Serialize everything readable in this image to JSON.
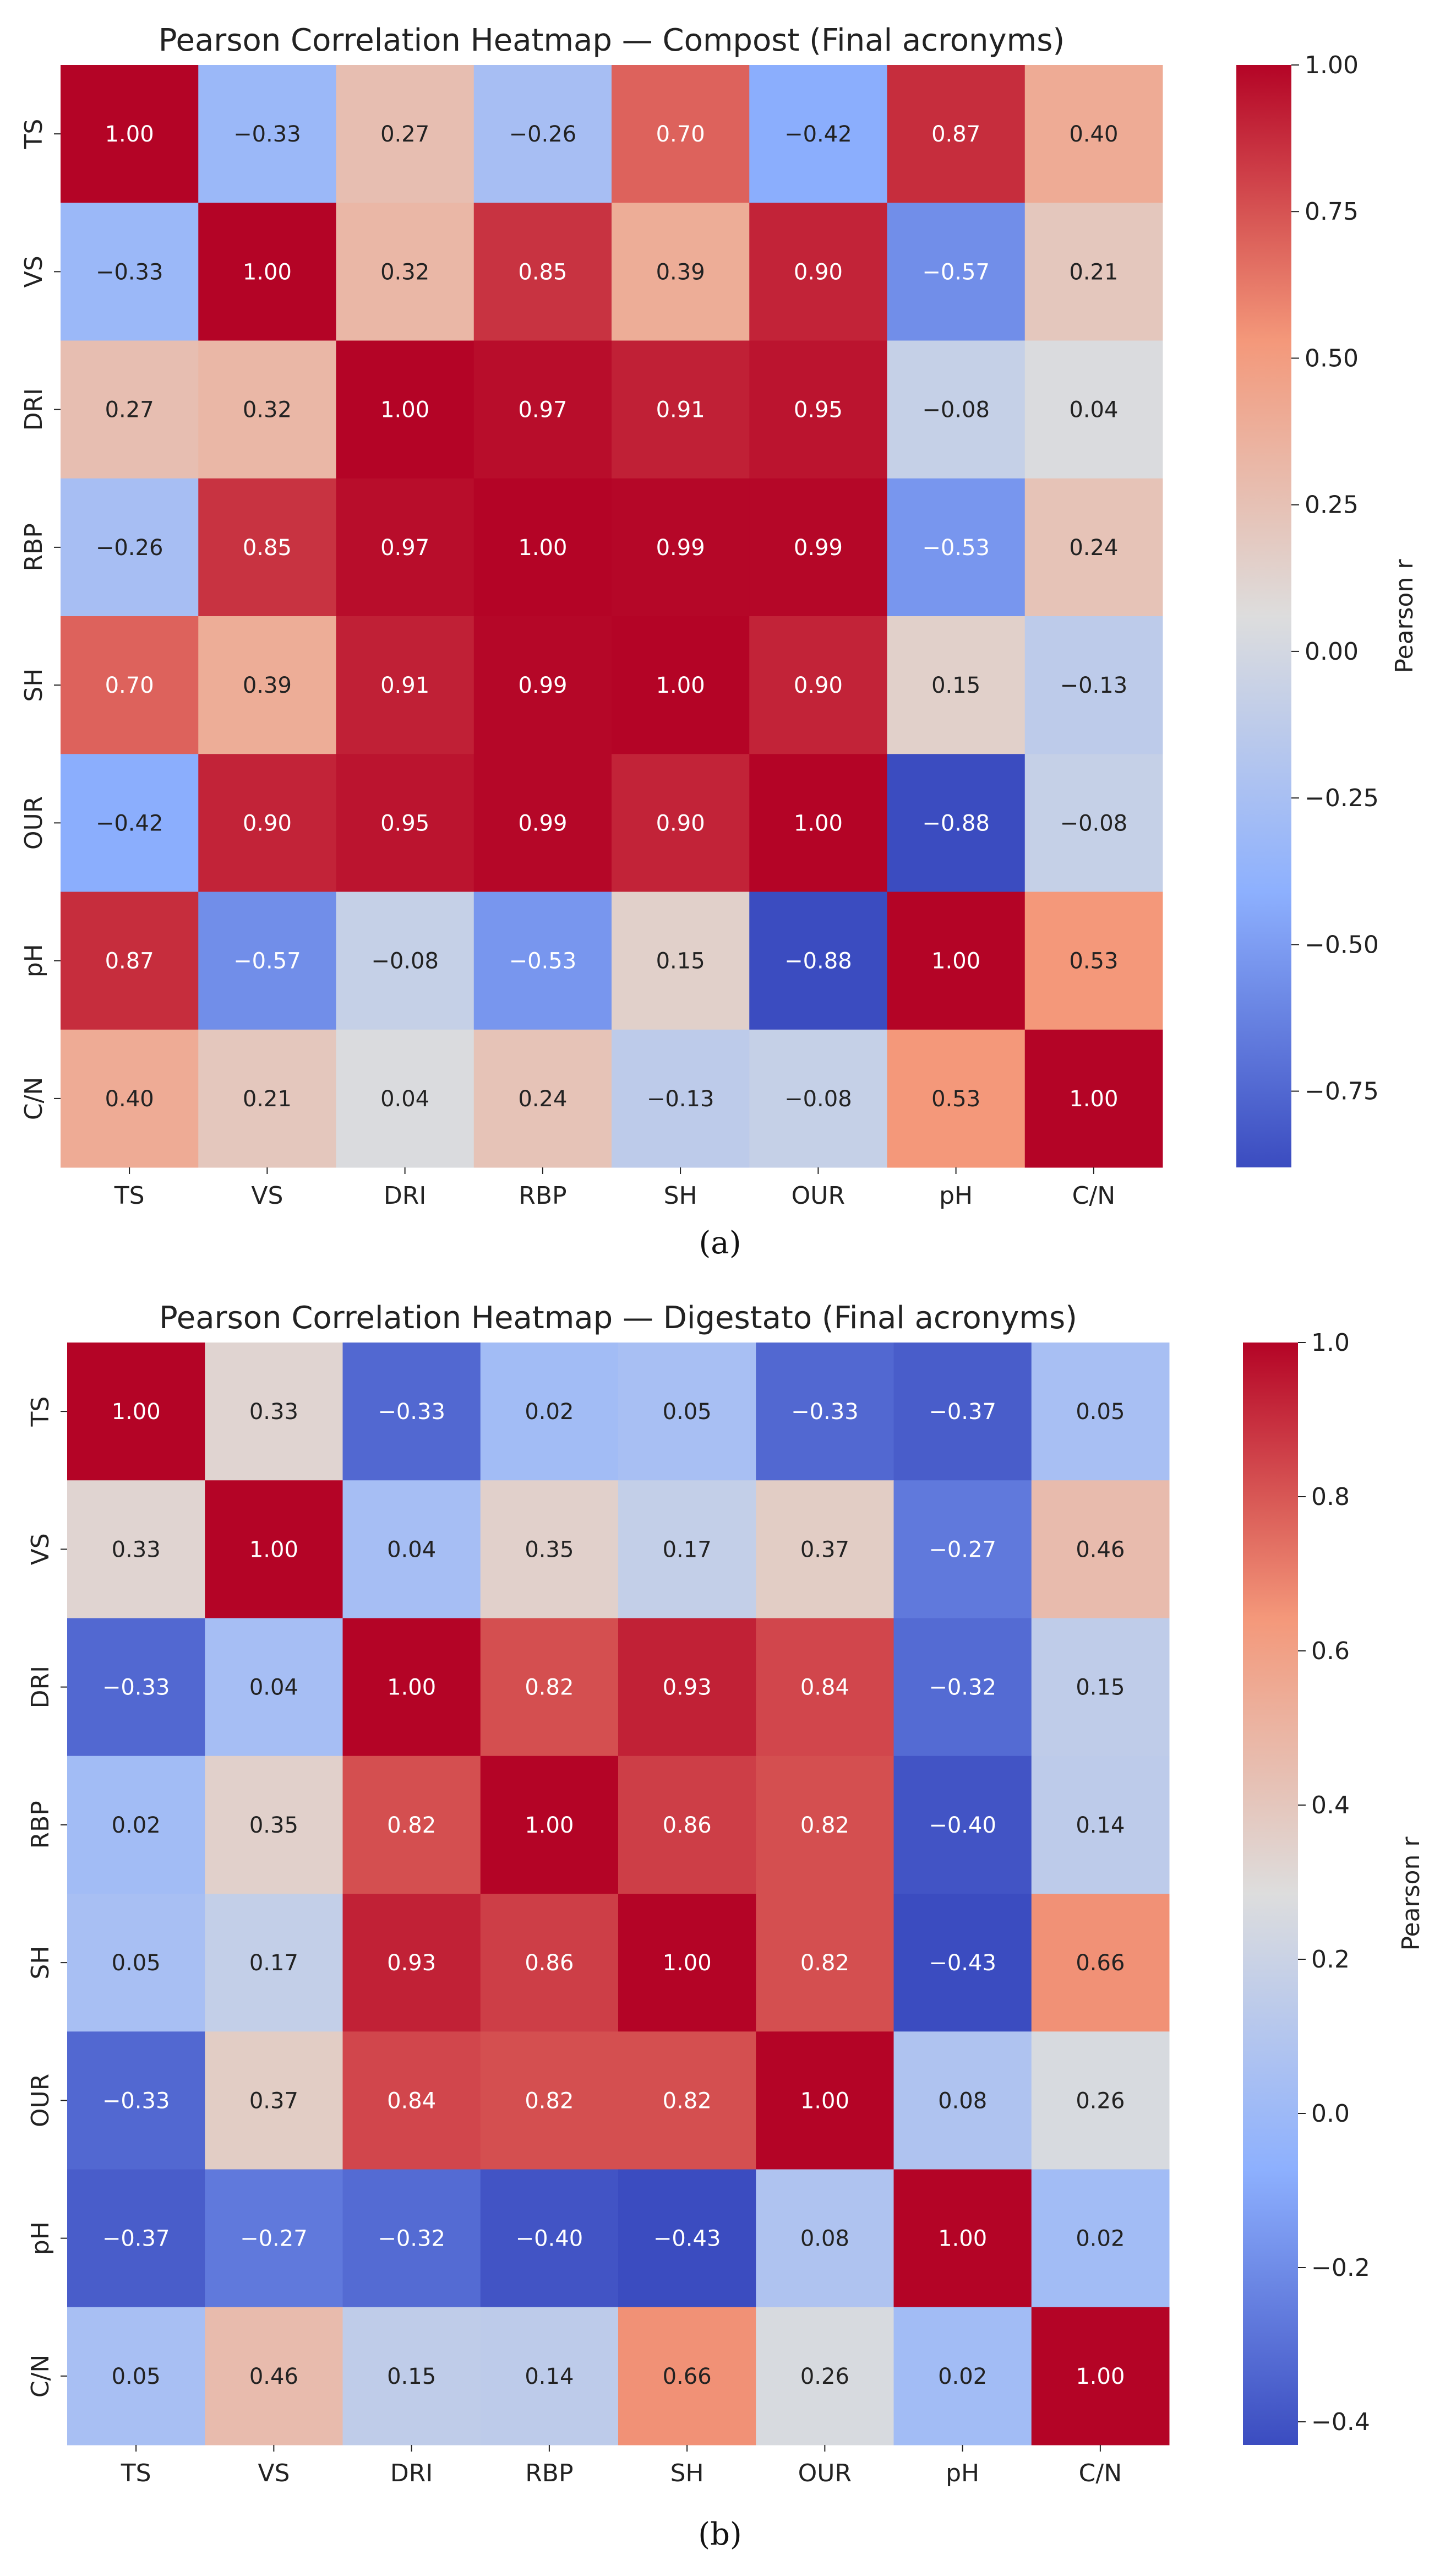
{
  "chart_data": [
    {
      "type": "heatmap",
      "title": "Pearson Correlation Heatmap — Compost (Final acronyms)",
      "caption": "(a)",
      "x_labels": [
        "TS",
        "VS",
        "DRI",
        "RBP",
        "SH",
        "OUR",
        "pH",
        "C/N"
      ],
      "y_labels": [
        "TS",
        "VS",
        "DRI",
        "RBP",
        "SH",
        "OUR",
        "pH",
        "C/N"
      ],
      "values": [
        [
          1.0,
          -0.33,
          0.27,
          -0.26,
          0.7,
          -0.42,
          0.87,
          0.4
        ],
        [
          -0.33,
          1.0,
          0.32,
          0.85,
          0.39,
          0.9,
          -0.57,
          0.21
        ],
        [
          0.27,
          0.32,
          1.0,
          0.97,
          0.91,
          0.95,
          -0.08,
          0.04
        ],
        [
          -0.26,
          0.85,
          0.97,
          1.0,
          0.99,
          0.99,
          -0.53,
          0.24
        ],
        [
          0.7,
          0.39,
          0.91,
          0.99,
          1.0,
          0.9,
          0.15,
          -0.13
        ],
        [
          -0.42,
          0.9,
          0.95,
          0.99,
          0.9,
          1.0,
          -0.88,
          -0.08
        ],
        [
          0.87,
          -0.57,
          -0.08,
          -0.53,
          0.15,
          -0.88,
          1.0,
          0.53
        ],
        [
          0.4,
          0.21,
          0.04,
          0.24,
          -0.13,
          -0.08,
          0.53,
          1.0
        ]
      ],
      "colorbar": {
        "label": "Pearson r",
        "range": [
          -0.88,
          1.0
        ],
        "ticks": [
          1.0,
          0.75,
          0.5,
          0.25,
          0.0,
          -0.25,
          -0.5,
          -0.75
        ],
        "tick_labels": [
          "1.00",
          "0.75",
          "0.50",
          "0.25",
          "0.00",
          "−0.25",
          "−0.50",
          "−0.75"
        ],
        "colormap": "coolwarm"
      }
    },
    {
      "type": "heatmap",
      "title": "Pearson Correlation Heatmap — Digestato (Final acronyms)",
      "caption": "(b)",
      "x_labels": [
        "TS",
        "VS",
        "DRI",
        "RBP",
        "SH",
        "OUR",
        "pH",
        "C/N"
      ],
      "y_labels": [
        "TS",
        "VS",
        "DRI",
        "RBP",
        "SH",
        "OUR",
        "pH",
        "C/N"
      ],
      "values": [
        [
          1.0,
          0.33,
          -0.33,
          0.02,
          0.05,
          -0.33,
          -0.37,
          0.05
        ],
        [
          0.33,
          1.0,
          0.04,
          0.35,
          0.17,
          0.37,
          -0.27,
          0.46
        ],
        [
          -0.33,
          0.04,
          1.0,
          0.82,
          0.93,
          0.84,
          -0.32,
          0.15
        ],
        [
          0.02,
          0.35,
          0.82,
          1.0,
          0.86,
          0.82,
          -0.4,
          0.14
        ],
        [
          0.05,
          0.17,
          0.93,
          0.86,
          1.0,
          0.82,
          -0.43,
          0.66
        ],
        [
          -0.33,
          0.37,
          0.84,
          0.82,
          0.82,
          1.0,
          0.08,
          0.26
        ],
        [
          -0.37,
          -0.27,
          -0.32,
          -0.4,
          -0.43,
          0.08,
          1.0,
          0.02
        ],
        [
          0.05,
          0.46,
          0.15,
          0.14,
          0.66,
          0.26,
          0.02,
          1.0
        ]
      ],
      "colorbar": {
        "label": "Pearson r",
        "range": [
          -0.43,
          1.0
        ],
        "ticks": [
          1.0,
          0.8,
          0.6,
          0.4,
          0.2,
          0.0,
          -0.2,
          -0.4
        ],
        "tick_labels": [
          "1.0",
          "0.8",
          "0.6",
          "0.4",
          "0.2",
          "0.0",
          "−0.2",
          "−0.4"
        ],
        "colormap": "coolwarm"
      }
    }
  ]
}
